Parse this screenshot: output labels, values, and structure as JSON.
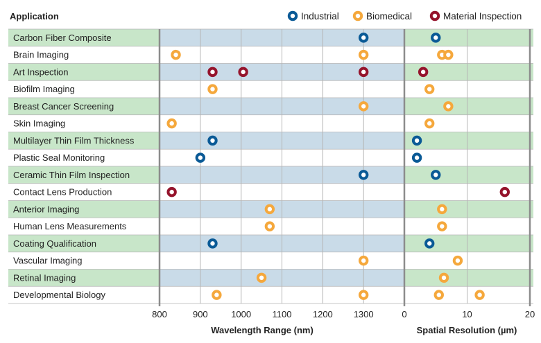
{
  "header": {
    "label": "Application"
  },
  "chart_data": {
    "type": "scatter",
    "categories": [
      "Carbon Fiber Composite",
      "Brain Imaging",
      "Art Inspection",
      "Biofilm Imaging",
      "Breast Cancer Screening",
      "Skin Imaging",
      "Multilayer Thin Film Thickness",
      "Plastic Seal Monitoring",
      "Ceramic Thin Film Inspection",
      "Contact Lens Production",
      "Anterior Imaging",
      "Human Lens Measurements",
      "Coating Qualification",
      "Vascular Imaging",
      "Retinal Imaging",
      "Developmental Biology"
    ],
    "highlighted_rows": [
      0,
      2,
      4,
      6,
      8,
      10,
      12,
      14
    ],
    "series": [
      {
        "name": "Industrial",
        "color": "#0a5a96"
      },
      {
        "name": "Biomedical",
        "color": "#f5a83c"
      },
      {
        "name": "Material Inspection",
        "color": "#95142c"
      }
    ],
    "panels": [
      {
        "xlabel": "Wavelength Range (nm)",
        "xlim": [
          800,
          1400
        ],
        "xticks": [
          800,
          900,
          1000,
          1100,
          1200,
          1300
        ],
        "tick_labels": [
          "800",
          "900",
          "1000",
          "1100",
          "1200",
          "1300"
        ],
        "points": [
          {
            "row": 0,
            "x": 1300,
            "series": 0
          },
          {
            "row": 1,
            "x": 840,
            "series": 1
          },
          {
            "row": 1,
            "x": 1300,
            "series": 1
          },
          {
            "row": 2,
            "x": 930,
            "series": 2
          },
          {
            "row": 2,
            "x": 1005,
            "series": 2
          },
          {
            "row": 2,
            "x": 1300,
            "series": 2
          },
          {
            "row": 3,
            "x": 930,
            "series": 1
          },
          {
            "row": 4,
            "x": 1300,
            "series": 1
          },
          {
            "row": 5,
            "x": 830,
            "series": 1
          },
          {
            "row": 6,
            "x": 930,
            "series": 0
          },
          {
            "row": 7,
            "x": 900,
            "series": 0
          },
          {
            "row": 8,
            "x": 1300,
            "series": 0
          },
          {
            "row": 9,
            "x": 830,
            "series": 2
          },
          {
            "row": 10,
            "x": 1070,
            "series": 1
          },
          {
            "row": 11,
            "x": 1070,
            "series": 1
          },
          {
            "row": 12,
            "x": 930,
            "series": 0
          },
          {
            "row": 13,
            "x": 1300,
            "series": 1
          },
          {
            "row": 14,
            "x": 1050,
            "series": 1
          },
          {
            "row": 15,
            "x": 940,
            "series": 1
          },
          {
            "row": 15,
            "x": 1300,
            "series": 1
          }
        ]
      },
      {
        "xlabel": "Spatial Resolution (µm)",
        "xlim": [
          0,
          20
        ],
        "xticks": [
          0,
          10,
          20
        ],
        "tick_labels": [
          "0",
          "10",
          "20"
        ],
        "points": [
          {
            "row": 0,
            "x": 5,
            "series": 0
          },
          {
            "row": 1,
            "x": 6,
            "series": 1
          },
          {
            "row": 1,
            "x": 7,
            "series": 1
          },
          {
            "row": 2,
            "x": 3,
            "series": 2
          },
          {
            "row": 3,
            "x": 4,
            "series": 1
          },
          {
            "row": 4,
            "x": 7,
            "series": 1
          },
          {
            "row": 5,
            "x": 4,
            "series": 1
          },
          {
            "row": 6,
            "x": 2,
            "series": 0
          },
          {
            "row": 7,
            "x": 2,
            "series": 0
          },
          {
            "row": 8,
            "x": 5,
            "series": 0
          },
          {
            "row": 9,
            "x": 16,
            "series": 2
          },
          {
            "row": 10,
            "x": 6,
            "series": 1
          },
          {
            "row": 11,
            "x": 6,
            "series": 1
          },
          {
            "row": 12,
            "x": 4,
            "series": 0
          },
          {
            "row": 13,
            "x": 8.5,
            "series": 1
          },
          {
            "row": 14,
            "x": 6.3,
            "series": 1
          },
          {
            "row": 15,
            "x": 5.5,
            "series": 1
          },
          {
            "row": 15,
            "x": 12,
            "series": 1
          }
        ]
      }
    ],
    "colors": {
      "row_highlight": "#c8e6c9",
      "plot_band": "#c9dbe8",
      "row_divider": "#b4b4b4",
      "panel_border": "#8c8c8c"
    }
  }
}
